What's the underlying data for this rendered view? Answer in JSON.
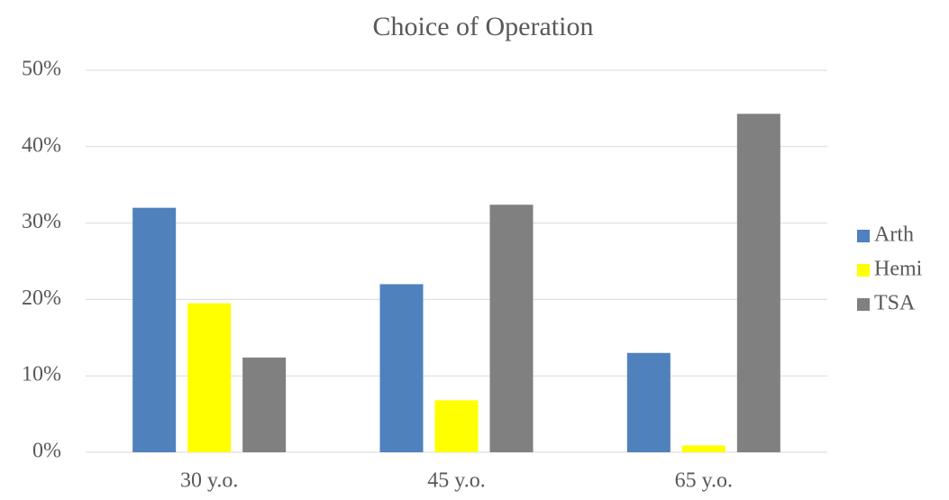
{
  "chart_data": {
    "type": "bar",
    "title": "Choice of Operation",
    "categories": [
      "30 y.o.",
      "45 y.o.",
      "65 y.o."
    ],
    "series": [
      {
        "name": "Arth",
        "color": "#4f81bd",
        "values": [
          32,
          22,
          13
        ]
      },
      {
        "name": "Hemi",
        "color": "#ffff00",
        "values": [
          19.5,
          6.8,
          0.9
        ]
      },
      {
        "name": "TSA",
        "color": "#808080",
        "values": [
          12.4,
          32.4,
          44.3
        ]
      }
    ],
    "ylim": [
      0,
      50
    ],
    "yticks": [
      {
        "value": 0,
        "label": "0%"
      },
      {
        "value": 10,
        "label": "10%"
      },
      {
        "value": 20,
        "label": "20%"
      },
      {
        "value": 30,
        "label": "30%"
      },
      {
        "value": 40,
        "label": "40%"
      },
      {
        "value": 50,
        "label": "50%"
      }
    ],
    "grid": true,
    "legend": "right"
  }
}
